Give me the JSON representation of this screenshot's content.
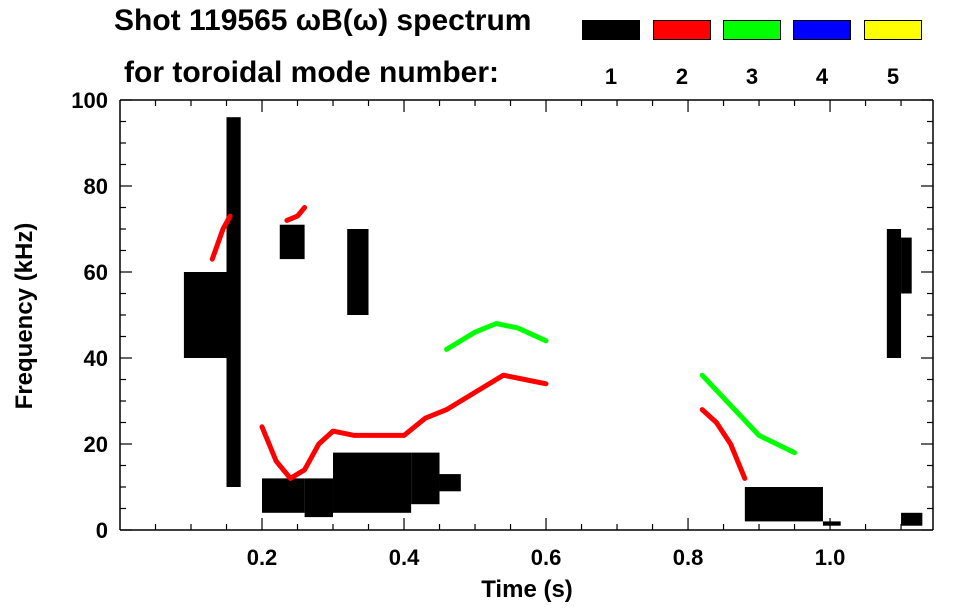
{
  "chart_data": {
    "type": "spectrogram",
    "title_line1": "Shot 119565 ωB(ω) spectrum",
    "title_line2": "for toroidal mode number:",
    "xlabel": "Time (s)",
    "ylabel": "Frequency (kHz)",
    "xlim": [
      0.0,
      1.145
    ],
    "ylim": [
      0,
      100
    ],
    "xticks": [
      0.2,
      0.4,
      0.6,
      0.8,
      1.0
    ],
    "xtick_labels": [
      "0.2",
      "0.4",
      "0.6",
      "0.8",
      "1.0"
    ],
    "yticks": [
      0,
      20,
      40,
      60,
      80,
      100
    ],
    "ytick_labels": [
      "0",
      "20",
      "40",
      "60",
      "80",
      "100"
    ],
    "grid": false,
    "legend": {
      "placement": "top-right",
      "entries": [
        {
          "label": "1",
          "color": "#000000"
        },
        {
          "label": "2",
          "color": "#ff0000"
        },
        {
          "label": "3",
          "color": "#00ff00"
        },
        {
          "label": "4",
          "color": "#0000ff"
        },
        {
          "label": "5",
          "color": "#ffff00"
        }
      ]
    },
    "series": [
      {
        "mode": 1,
        "color": "#000000",
        "regions": [
          {
            "t": [
              0.09,
              0.16
            ],
            "f": [
              40,
              60
            ]
          },
          {
            "t": [
              0.15,
              0.17
            ],
            "f": [
              10,
              96
            ]
          },
          {
            "t": [
              0.225,
              0.26
            ],
            "f": [
              63,
              71
            ]
          },
          {
            "t": [
              0.2,
              0.26
            ],
            "f": [
              4,
              12
            ]
          },
          {
            "t": [
              0.26,
              0.3
            ],
            "f": [
              3,
              12
            ]
          },
          {
            "t": [
              0.3,
              0.41
            ],
            "f": [
              4,
              18
            ]
          },
          {
            "t": [
              0.41,
              0.45
            ],
            "f": [
              6,
              18
            ]
          },
          {
            "t": [
              0.45,
              0.48
            ],
            "f": [
              9,
              13
            ]
          },
          {
            "t": [
              0.32,
              0.35
            ],
            "f": [
              50,
              70
            ]
          },
          {
            "t": [
              0.88,
              0.99
            ],
            "f": [
              2,
              10
            ]
          },
          {
            "t": [
              0.99,
              1.015
            ],
            "f": [
              1,
              2
            ]
          },
          {
            "t": [
              1.08,
              1.1
            ],
            "f": [
              40,
              70
            ]
          },
          {
            "t": [
              1.1,
              1.115
            ],
            "f": [
              55,
              68
            ]
          },
          {
            "t": [
              1.1,
              1.13
            ],
            "f": [
              1,
              4
            ]
          }
        ]
      },
      {
        "mode": 2,
        "color": "#ff0000",
        "ridges": [
          {
            "t": [
              0.13,
              0.145,
              0.155
            ],
            "f": [
              63,
              70,
              73
            ]
          },
          {
            "t": [
              0.235,
              0.25,
              0.26
            ],
            "f": [
              72,
              73,
              75
            ]
          },
          {
            "t": [
              0.2,
              0.22,
              0.24,
              0.26,
              0.28,
              0.3,
              0.33,
              0.36,
              0.4,
              0.43,
              0.46,
              0.5,
              0.54,
              0.57,
              0.6
            ],
            "f": [
              24,
              16,
              12,
              14,
              20,
              23,
              22,
              22,
              22,
              26,
              28,
              32,
              36,
              35,
              34
            ]
          },
          {
            "t": [
              0.82,
              0.84,
              0.86,
              0.88
            ],
            "f": [
              28,
              25,
              20,
              12
            ]
          }
        ]
      },
      {
        "mode": 3,
        "color": "#00ff00",
        "ridges": [
          {
            "t": [
              0.46,
              0.5,
              0.53,
              0.56,
              0.6
            ],
            "f": [
              42,
              46,
              48,
              47,
              44
            ]
          },
          {
            "t": [
              0.82,
              0.9,
              0.95
            ],
            "f": [
              36,
              22,
              18
            ]
          }
        ]
      },
      {
        "mode": 4,
        "color": "#0000ff",
        "ridges": []
      },
      {
        "mode": 5,
        "color": "#ffff00",
        "ridges": []
      }
    ]
  }
}
